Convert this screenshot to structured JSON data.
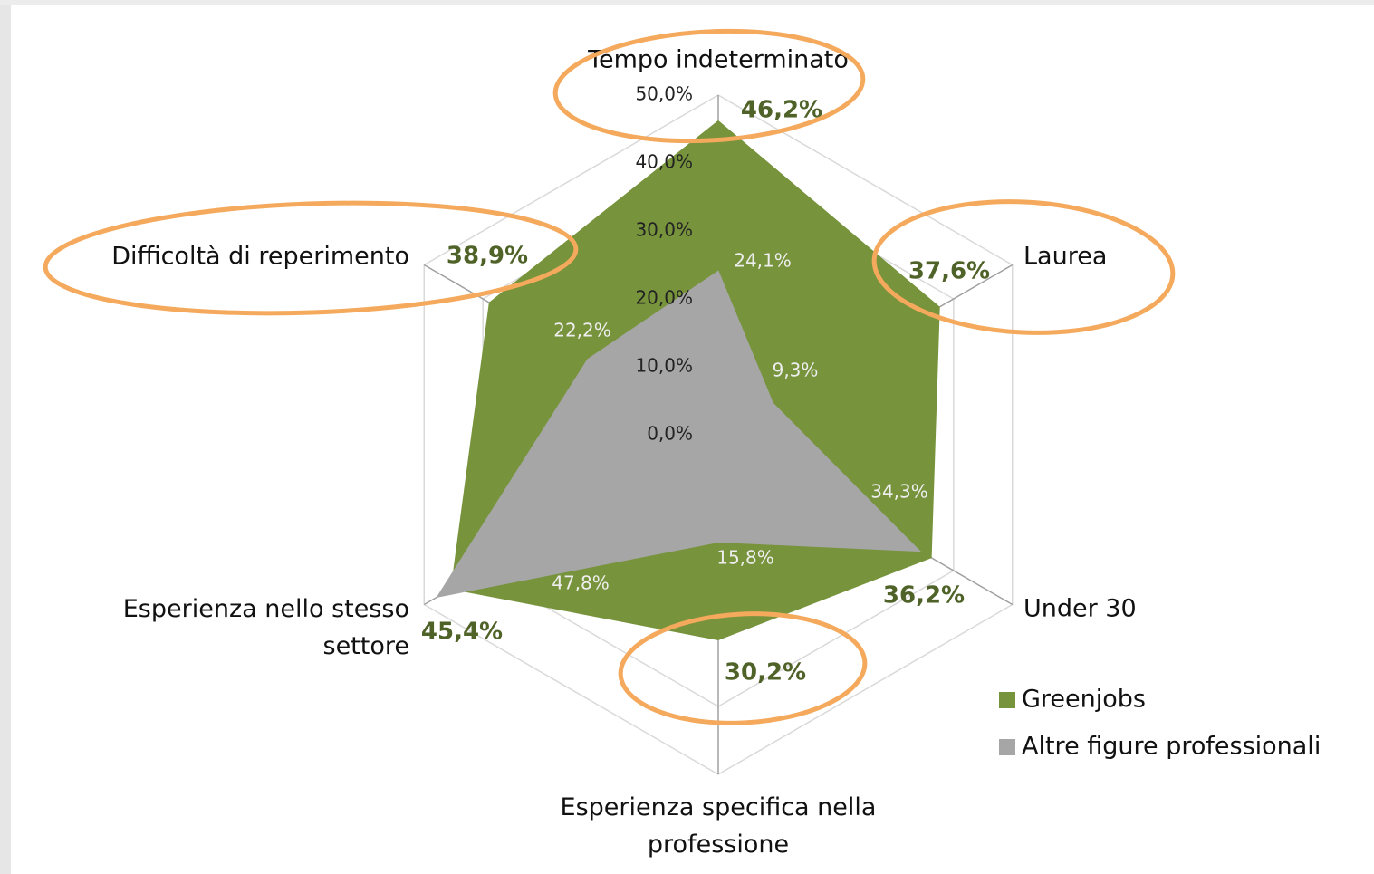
{
  "chart_data": {
    "type": "radar",
    "categories": [
      "Tempo indeterminato",
      "Laurea",
      "Under 30",
      "Esperienza specifica nella professione",
      "Esperienza nello stesso settore",
      "Difficoltà di reperimento"
    ],
    "series": [
      {
        "name": "Greenjobs",
        "color": "#77933c",
        "values": [
          46.2,
          37.6,
          36.2,
          30.2,
          45.4,
          38.9
        ],
        "value_labels": [
          "46,2%",
          "37,6%",
          "36,2%",
          "30,2%",
          "45,4%",
          "38,9%"
        ]
      },
      {
        "name": "Altre figure professionali",
        "color": "#a6a6a6",
        "values": [
          24.1,
          9.3,
          34.3,
          15.8,
          47.8,
          22.2
        ],
        "value_labels": [
          "24,1%",
          "9,3%",
          "34,3%",
          "15,8%",
          "47,8%",
          "22,2%"
        ]
      }
    ],
    "ylim": [
      0,
      50
    ],
    "yticks": [
      {
        "value": 0,
        "label": "0,0%"
      },
      {
        "value": 10,
        "label": "10,0%"
      },
      {
        "value": 20,
        "label": "20,0%"
      },
      {
        "value": 30,
        "label": "30,0%"
      },
      {
        "value": 40,
        "label": "40,0%"
      },
      {
        "value": 50,
        "label": "50,0%"
      }
    ],
    "grid": true,
    "legend": "bottom-right"
  }
}
